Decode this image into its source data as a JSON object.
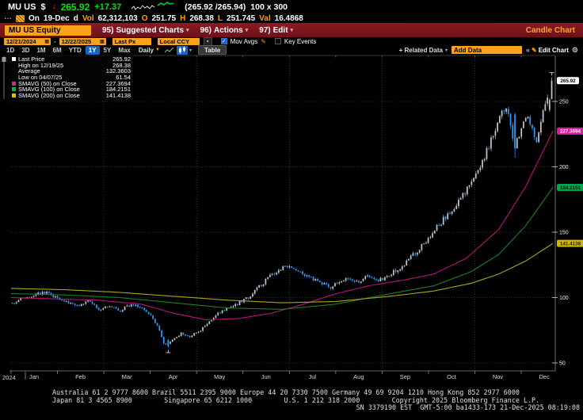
{
  "icons": {
    "down_arrow": "↓",
    "dropdown": "▾",
    "calendar": "▦",
    "pencil": "✎",
    "gear": "⚙",
    "double_left": "«",
    "check": "✓",
    "freq_caret": "▼",
    "ellipsis": "…",
    "plus_related": "+"
  },
  "header": {
    "ticker": "MU US",
    "currency": "$",
    "direction": "↓",
    "price": "265.92",
    "change": "+17.37",
    "bid_ask": "(265.92 /265.94)",
    "size": "100 x 300",
    "session": {
      "on_label": "On",
      "date": "19-Dec",
      "flag": "d",
      "vol_label": "Vol",
      "vol": "62,312,103",
      "o_label": "O",
      "o": "251.75",
      "h_label": "H",
      "h": "268.38",
      "l_label": "L",
      "l": "251.745",
      "val_label": "Val",
      "val": "16.4868"
    }
  },
  "menubar": {
    "security": "MU US Equity",
    "items": [
      {
        "num": "95)",
        "label": "Suggested Charts"
      },
      {
        "num": "96)",
        "label": "Actions"
      },
      {
        "num": "97)",
        "label": "Edit"
      }
    ],
    "title": "Candle Chart"
  },
  "controls": {
    "date_from": "12/21/2024",
    "date_to": "12/22/2025",
    "dash": "-",
    "field": "Last Px",
    "currency": "Local CCY",
    "mov_avgs": "Mov Avgs",
    "key_events": "Key Events"
  },
  "periodbar": {
    "periods": [
      "1D",
      "3D",
      "1M",
      "6M",
      "YTD",
      "1Y",
      "5Y",
      "Max"
    ],
    "active": "1Y",
    "frequency": "Daily",
    "table": "Table",
    "related": "+ Related Data",
    "add_data": "Add Data",
    "edit_chart": "Edit Chart"
  },
  "legend": {
    "rows": [
      {
        "swatch": "#ffffff",
        "label": "Last Price",
        "value": "265.92"
      },
      {
        "swatch": null,
        "label": "High on 12/19/25",
        "value": "268.38"
      },
      {
        "swatch": null,
        "label": "Average",
        "value": "132.3603"
      },
      {
        "swatch": null,
        "label": "Low on 04/07/25",
        "value": "61.54"
      },
      {
        "swatch": "#e0218a",
        "label": "SMAVG (50)  on Close",
        "value": "227.3694"
      },
      {
        "swatch": "#00b24a",
        "label": "SMAVG (100)  on Close",
        "value": "184.2151"
      },
      {
        "swatch": "#d6c400",
        "label": "SMAVG (200)  on Close",
        "value": "141.4138"
      }
    ]
  },
  "chart_data": {
    "type": "candlestick",
    "symbol": "MU US Equity",
    "range": "12/21/2024 - 12/22/2025, daily",
    "y_axis": {
      "ticks": [
        50,
        100,
        150,
        200,
        250
      ],
      "min": 44,
      "max": 284
    },
    "x_axis": {
      "months": [
        "Jan",
        "Feb",
        "Mar",
        "Apr",
        "May",
        "Jun",
        "Jul",
        "Aug",
        "Sep",
        "Oct",
        "Nov",
        "Dec"
      ],
      "year_label": "2024"
    },
    "stats": {
      "last_price": 265.92,
      "high": {
        "date": "12/19/25",
        "value": 268.38
      },
      "average": 132.3603,
      "low": {
        "date": "04/07/25",
        "value": 61.54
      },
      "smavg50": 227.3694,
      "smavg100": 184.2151,
      "smavg200": 141.4138
    },
    "last_candle": {
      "open": 251.75,
      "high": 268.38,
      "low": 251.745,
      "close": 265.92
    },
    "price_path": [
      [
        0,
        96
      ],
      [
        0.02,
        99
      ],
      [
        0.04,
        102
      ],
      [
        0.06,
        104
      ],
      [
        0.08,
        100
      ],
      [
        0.1,
        97
      ],
      [
        0.12,
        93
      ],
      [
        0.14,
        97
      ],
      [
        0.16,
        91
      ],
      [
        0.18,
        94
      ],
      [
        0.2,
        90
      ],
      [
        0.22,
        95
      ],
      [
        0.24,
        92
      ],
      [
        0.255,
        87
      ],
      [
        0.27,
        78
      ],
      [
        0.283,
        63
      ],
      [
        0.29,
        66
      ],
      [
        0.3,
        69
      ],
      [
        0.315,
        73
      ],
      [
        0.33,
        70
      ],
      [
        0.345,
        74
      ],
      [
        0.36,
        79
      ],
      [
        0.38,
        87
      ],
      [
        0.4,
        92
      ],
      [
        0.42,
        96
      ],
      [
        0.44,
        101
      ],
      [
        0.46,
        109
      ],
      [
        0.48,
        117
      ],
      [
        0.5,
        123
      ],
      [
        0.515,
        125
      ],
      [
        0.53,
        121
      ],
      [
        0.55,
        116
      ],
      [
        0.57,
        112
      ],
      [
        0.59,
        108
      ],
      [
        0.61,
        112
      ],
      [
        0.625,
        115
      ],
      [
        0.64,
        112
      ],
      [
        0.66,
        117
      ],
      [
        0.68,
        113
      ],
      [
        0.7,
        118
      ],
      [
        0.72,
        123
      ],
      [
        0.74,
        131
      ],
      [
        0.76,
        140
      ],
      [
        0.78,
        150
      ],
      [
        0.8,
        160
      ],
      [
        0.82,
        170
      ],
      [
        0.84,
        181
      ],
      [
        0.855,
        192
      ],
      [
        0.87,
        203
      ],
      [
        0.885,
        217
      ],
      [
        0.9,
        232
      ],
      [
        0.912,
        246
      ],
      [
        0.922,
        235
      ],
      [
        0.932,
        215
      ],
      [
        0.942,
        226
      ],
      [
        0.952,
        238
      ],
      [
        0.962,
        231
      ],
      [
        0.972,
        221
      ],
      [
        0.982,
        240
      ],
      [
        0.99,
        252
      ],
      [
        1.0,
        262
      ]
    ],
    "forced_candles": {
      "72": [
        67.5,
        68.2,
        61.54,
        62.8
      ],
      "232": [
        240,
        241.5,
        207,
        214
      ],
      "248": [
        243.5,
        252.5,
        242,
        251.2
      ],
      "249": [
        251.75,
        268.38,
        251.745,
        265.92
      ]
    },
    "ma_lines": [
      {
        "name": "SMAVG (50) on Close",
        "color": "#b8127a",
        "path": [
          [
            0,
            100
          ],
          [
            0.08,
            99
          ],
          [
            0.16,
            98
          ],
          [
            0.24,
            95
          ],
          [
            0.3,
            88
          ],
          [
            0.36,
            83
          ],
          [
            0.42,
            84
          ],
          [
            0.48,
            88
          ],
          [
            0.54,
            95
          ],
          [
            0.6,
            103
          ],
          [
            0.66,
            109
          ],
          [
            0.72,
            113
          ],
          [
            0.78,
            118
          ],
          [
            0.84,
            130
          ],
          [
            0.9,
            152
          ],
          [
            0.95,
            185
          ],
          [
            1.0,
            227.37
          ]
        ]
      },
      {
        "name": "SMAVG (100) on Close",
        "color": "#1c7e28",
        "path": [
          [
            0,
            103
          ],
          [
            0.1,
            102
          ],
          [
            0.2,
            100
          ],
          [
            0.3,
            96
          ],
          [
            0.4,
            92
          ],
          [
            0.5,
            91
          ],
          [
            0.6,
            95
          ],
          [
            0.7,
            103
          ],
          [
            0.78,
            109
          ],
          [
            0.85,
            120
          ],
          [
            0.9,
            133
          ],
          [
            0.95,
            155
          ],
          [
            1.0,
            184.22
          ]
        ]
      },
      {
        "name": "SMAVG (200) on Close",
        "color": "#aaa315",
        "path": [
          [
            0,
            107
          ],
          [
            0.1,
            106
          ],
          [
            0.2,
            104
          ],
          [
            0.3,
            101
          ],
          [
            0.4,
            98
          ],
          [
            0.5,
            96
          ],
          [
            0.6,
            97
          ],
          [
            0.7,
            101
          ],
          [
            0.78,
            105
          ],
          [
            0.85,
            111
          ],
          [
            0.9,
            118
          ],
          [
            0.95,
            128
          ],
          [
            1.0,
            141.41
          ]
        ]
      }
    ],
    "axis_badges": [
      {
        "value": "265.92",
        "price": 265.92,
        "bg": "#ffffff",
        "fg": "#000000"
      },
      {
        "value": "227.3694",
        "price": 227.3694,
        "bg": "#d4219a",
        "fg": "#ffffff"
      },
      {
        "value": "184.2151",
        "price": 184.2151,
        "bg": "#00a44a",
        "fg": "#002200"
      },
      {
        "value": "141.4138",
        "price": 141.4138,
        "bg": "#cdb800",
        "fg": "#221c00"
      }
    ],
    "colors": {
      "up": "#c2c6cb",
      "down": "#2e9aff",
      "grid": "#3c3c3c",
      "axis": "#8a8a8a"
    }
  },
  "footer": {
    "line1": "Australia 61 2 9777 8600 Brazil 5511 2395 9000 Europe 44 20 7330 7500 Germany 49 69 9204 1210 Hong Kong 852 2977 6000",
    "line2": "Japan 81 3 4565 8900        Singapore 65 6212 1000        U.S. 1 212 318 2000        Copyright 2025 Bloomberg Finance L.P.",
    "line3": "SN 3379190 EST  GMT-5:00 ba1433-173 21-Dec-2025 08:19:08"
  }
}
